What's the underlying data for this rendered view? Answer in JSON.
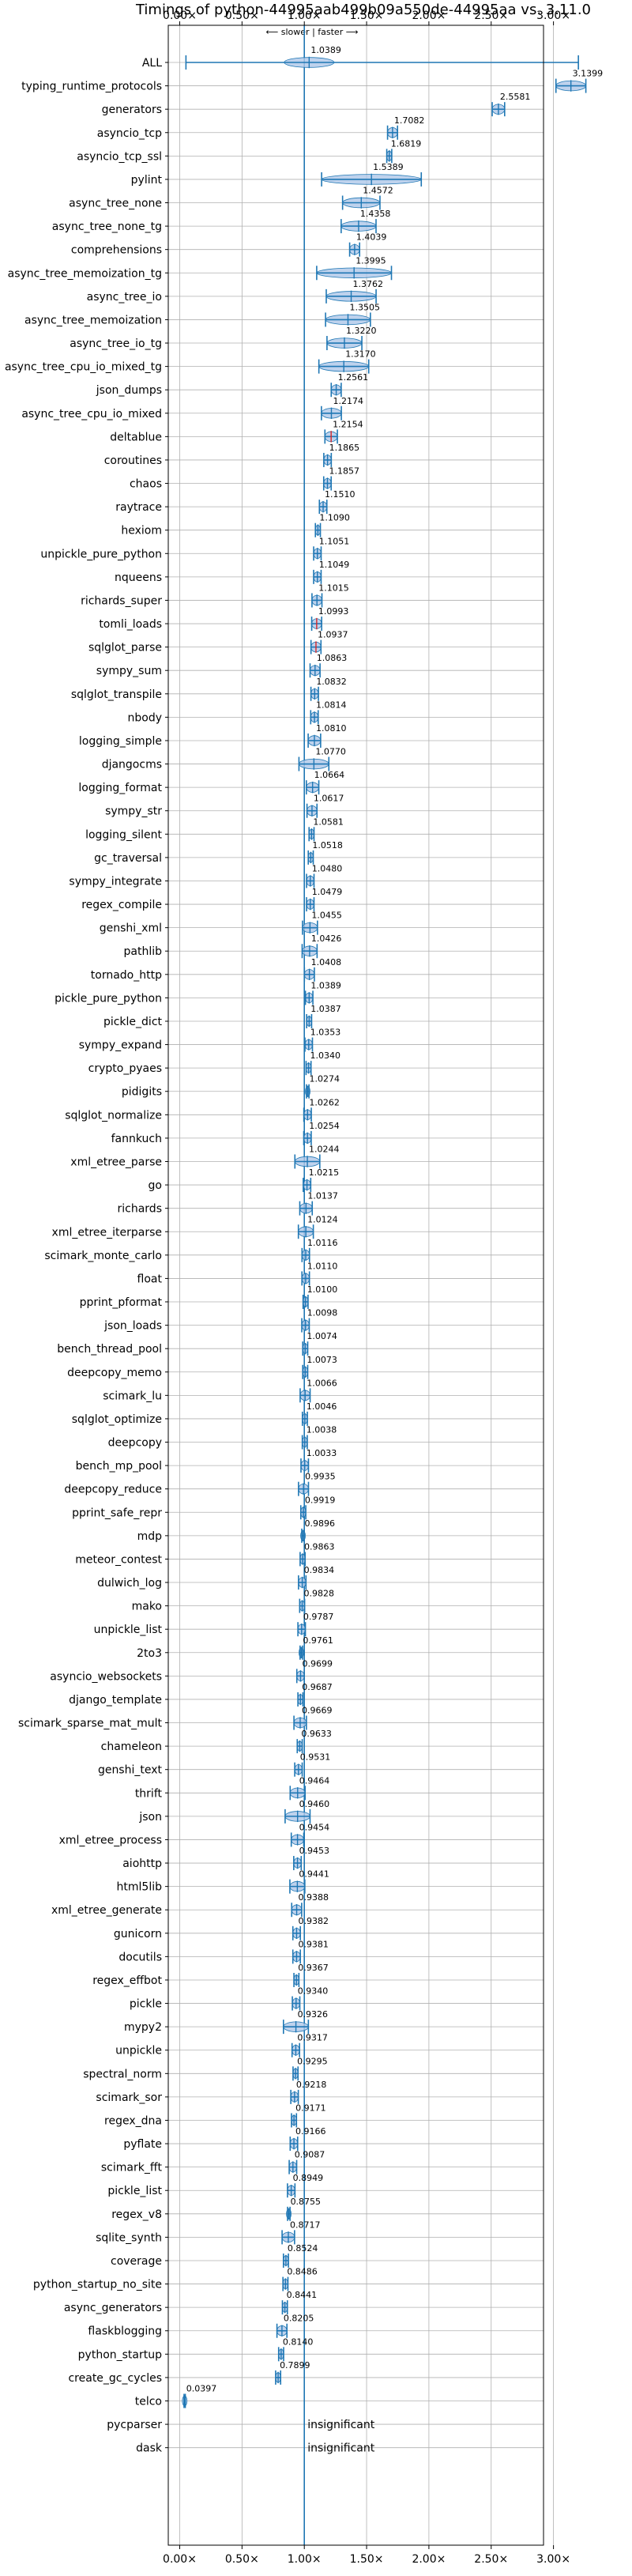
{
  "chart_data": {
    "type": "violin",
    "title": "Timings of python-44995aab499b09a550de-44995aa vs. 3.11.0",
    "annotation": "⟵ slower | faster ⟶",
    "x_ticks": [
      {
        "value": 0.0,
        "label": "0.00×"
      },
      {
        "value": 0.5,
        "label": "0.50×"
      },
      {
        "value": 1.0,
        "label": "1.00×"
      },
      {
        "value": 1.5,
        "label": "1.50×"
      },
      {
        "value": 2.0,
        "label": "2.00×"
      },
      {
        "value": 2.5,
        "label": "2.50×"
      },
      {
        "value": 3.0,
        "label": "3.00×"
      }
    ],
    "xlim": [
      -0.05,
      3.2
    ],
    "reference_line": 1.0,
    "grid": true,
    "colors": {
      "violin": "#1f77b4",
      "violin_fill": "#aec7e8",
      "reference": "#1f77b4",
      "grid": "#b0b0b0",
      "highlight": "#d62728"
    },
    "benchmarks": [
      {
        "name": "ALL",
        "value": 1.0389,
        "label": "1.0389",
        "spread": 0.2,
        "range": [
          0.05,
          3.2
        ]
      },
      {
        "name": "typing_runtime_protocols",
        "value": 3.1399,
        "label": "3.1399",
        "spread": 0.12
      },
      {
        "name": "generators",
        "value": 2.5581,
        "label": "2.5581",
        "spread": 0.05
      },
      {
        "name": "asyncio_tcp",
        "value": 1.7082,
        "label": "1.7082",
        "spread": 0.04
      },
      {
        "name": "asyncio_tcp_ssl",
        "value": 1.6819,
        "label": "1.6819",
        "spread": 0.02
      },
      {
        "name": "pylint",
        "value": 1.5389,
        "label": "1.5389",
        "spread": 0.4
      },
      {
        "name": "async_tree_none",
        "value": 1.4572,
        "label": "1.4572",
        "spread": 0.15
      },
      {
        "name": "async_tree_none_tg",
        "value": 1.4358,
        "label": "1.4358",
        "spread": 0.14
      },
      {
        "name": "comprehensions",
        "value": 1.4039,
        "label": "1.4039",
        "spread": 0.04
      },
      {
        "name": "async_tree_memoization_tg",
        "value": 1.3995,
        "label": "1.3995",
        "spread": 0.3
      },
      {
        "name": "async_tree_io",
        "value": 1.3762,
        "label": "1.3762",
        "spread": 0.2
      },
      {
        "name": "async_tree_memoization",
        "value": 1.3505,
        "label": "1.3505",
        "spread": 0.18
      },
      {
        "name": "async_tree_io_tg",
        "value": 1.322,
        "label": "1.3220",
        "spread": 0.14
      },
      {
        "name": "async_tree_cpu_io_mixed_tg",
        "value": 1.317,
        "label": "1.3170",
        "spread": 0.2
      },
      {
        "name": "json_dumps",
        "value": 1.2561,
        "label": "1.2561",
        "spread": 0.04
      },
      {
        "name": "async_tree_cpu_io_mixed",
        "value": 1.2174,
        "label": "1.2174",
        "spread": 0.08
      },
      {
        "name": "deltablue",
        "value": 1.2154,
        "label": "1.2154",
        "spread": 0.05,
        "highlight": true
      },
      {
        "name": "coroutines",
        "value": 1.1865,
        "label": "1.1865",
        "spread": 0.03
      },
      {
        "name": "chaos",
        "value": 1.1857,
        "label": "1.1857",
        "spread": 0.03
      },
      {
        "name": "raytrace",
        "value": 1.151,
        "label": "1.1510",
        "spread": 0.03
      },
      {
        "name": "hexiom",
        "value": 1.109,
        "label": "1.1090",
        "spread": 0.02
      },
      {
        "name": "unpickle_pure_python",
        "value": 1.1051,
        "label": "1.1051",
        "spread": 0.03
      },
      {
        "name": "nqueens",
        "value": 1.1049,
        "label": "1.1049",
        "spread": 0.03
      },
      {
        "name": "richards_super",
        "value": 1.1015,
        "label": "1.1015",
        "spread": 0.04
      },
      {
        "name": "tomli_loads",
        "value": 1.0993,
        "label": "1.0993",
        "spread": 0.04,
        "highlight": true
      },
      {
        "name": "sqlglot_parse",
        "value": 1.0937,
        "label": "1.0937",
        "spread": 0.04,
        "highlight": true
      },
      {
        "name": "sympy_sum",
        "value": 1.0863,
        "label": "1.0863",
        "spread": 0.04
      },
      {
        "name": "sqlglot_transpile",
        "value": 1.0832,
        "label": "1.0832",
        "spread": 0.03
      },
      {
        "name": "nbody",
        "value": 1.0814,
        "label": "1.0814",
        "spread": 0.03
      },
      {
        "name": "logging_simple",
        "value": 1.081,
        "label": "1.0810",
        "spread": 0.05
      },
      {
        "name": "djangocms",
        "value": 1.077,
        "label": "1.0770",
        "spread": 0.12
      },
      {
        "name": "logging_format",
        "value": 1.0664,
        "label": "1.0664",
        "spread": 0.05
      },
      {
        "name": "sympy_str",
        "value": 1.0617,
        "label": "1.0617",
        "spread": 0.04
      },
      {
        "name": "logging_silent",
        "value": 1.0581,
        "label": "1.0581",
        "spread": 0.02
      },
      {
        "name": "gc_traversal",
        "value": 1.0518,
        "label": "1.0518",
        "spread": 0.02
      },
      {
        "name": "sympy_integrate",
        "value": 1.048,
        "label": "1.0480",
        "spread": 0.03
      },
      {
        "name": "regex_compile",
        "value": 1.0479,
        "label": "1.0479",
        "spread": 0.03
      },
      {
        "name": "genshi_xml",
        "value": 1.0455,
        "label": "1.0455",
        "spread": 0.06
      },
      {
        "name": "pathlib",
        "value": 1.0426,
        "label": "1.0426",
        "spread": 0.06
      },
      {
        "name": "tornado_http",
        "value": 1.0408,
        "label": "1.0408",
        "spread": 0.04
      },
      {
        "name": "pickle_pure_python",
        "value": 1.0389,
        "label": "1.0389",
        "spread": 0.03
      },
      {
        "name": "pickle_dict",
        "value": 1.0387,
        "label": "1.0387",
        "spread": 0.02
      },
      {
        "name": "sympy_expand",
        "value": 1.0353,
        "label": "1.0353",
        "spread": 0.03
      },
      {
        "name": "crypto_pyaes",
        "value": 1.034,
        "label": "1.0340",
        "spread": 0.02
      },
      {
        "name": "pidigits",
        "value": 1.0274,
        "label": "1.0274",
        "spread": 0.01
      },
      {
        "name": "sqlglot_normalize",
        "value": 1.0262,
        "label": "1.0262",
        "spread": 0.03
      },
      {
        "name": "fannkuch",
        "value": 1.0254,
        "label": "1.0254",
        "spread": 0.03
      },
      {
        "name": "xml_etree_parse",
        "value": 1.0244,
        "label": "1.0244",
        "spread": 0.1
      },
      {
        "name": "go",
        "value": 1.0215,
        "label": "1.0215",
        "spread": 0.03
      },
      {
        "name": "richards",
        "value": 1.0137,
        "label": "1.0137",
        "spread": 0.05
      },
      {
        "name": "xml_etree_iterparse",
        "value": 1.0124,
        "label": "1.0124",
        "spread": 0.06
      },
      {
        "name": "scimark_monte_carlo",
        "value": 1.0116,
        "label": "1.0116",
        "spread": 0.03
      },
      {
        "name": "float",
        "value": 1.011,
        "label": "1.0110",
        "spread": 0.03
      },
      {
        "name": "pprint_pformat",
        "value": 1.01,
        "label": "1.0100",
        "spread": 0.02
      },
      {
        "name": "json_loads",
        "value": 1.0098,
        "label": "1.0098",
        "spread": 0.03
      },
      {
        "name": "bench_thread_pool",
        "value": 1.0074,
        "label": "1.0074",
        "spread": 0.02
      },
      {
        "name": "deepcopy_memo",
        "value": 1.0073,
        "label": "1.0073",
        "spread": 0.02
      },
      {
        "name": "scimark_lu",
        "value": 1.0066,
        "label": "1.0066",
        "spread": 0.04
      },
      {
        "name": "sqlglot_optimize",
        "value": 1.0046,
        "label": "1.0046",
        "spread": 0.02
      },
      {
        "name": "deepcopy",
        "value": 1.0038,
        "label": "1.0038",
        "spread": 0.02
      },
      {
        "name": "bench_mp_pool",
        "value": 1.0033,
        "label": "1.0033",
        "spread": 0.03
      },
      {
        "name": "deepcopy_reduce",
        "value": 0.9935,
        "label": "0.9935",
        "spread": 0.04
      },
      {
        "name": "pprint_safe_repr",
        "value": 0.9919,
        "label": "0.9919",
        "spread": 0.02
      },
      {
        "name": "mdp",
        "value": 0.9896,
        "label": "0.9896",
        "spread": 0.01
      },
      {
        "name": "meteor_contest",
        "value": 0.9863,
        "label": "0.9863",
        "spread": 0.02
      },
      {
        "name": "dulwich_log",
        "value": 0.9834,
        "label": "0.9834",
        "spread": 0.03
      },
      {
        "name": "mako",
        "value": 0.9828,
        "label": "0.9828",
        "spread": 0.02
      },
      {
        "name": "unpickle_list",
        "value": 0.9787,
        "label": "0.9787",
        "spread": 0.03
      },
      {
        "name": "2to3",
        "value": 0.9761,
        "label": "0.9761",
        "spread": 0.01
      },
      {
        "name": "asyncio_websockets",
        "value": 0.9699,
        "label": "0.9699",
        "spread": 0.03
      },
      {
        "name": "django_template",
        "value": 0.9687,
        "label": "0.9687",
        "spread": 0.02
      },
      {
        "name": "scimark_sparse_mat_mult",
        "value": 0.9669,
        "label": "0.9669",
        "spread": 0.05
      },
      {
        "name": "chameleon",
        "value": 0.9633,
        "label": "0.9633",
        "spread": 0.02
      },
      {
        "name": "genshi_text",
        "value": 0.9531,
        "label": "0.9531",
        "spread": 0.03
      },
      {
        "name": "thrift",
        "value": 0.9464,
        "label": "0.9464",
        "spread": 0.06
      },
      {
        "name": "json",
        "value": 0.946,
        "label": "0.9460",
        "spread": 0.1
      },
      {
        "name": "xml_etree_process",
        "value": 0.9454,
        "label": "0.9454",
        "spread": 0.05
      },
      {
        "name": "aiohttp",
        "value": 0.9453,
        "label": "0.9453",
        "spread": 0.03
      },
      {
        "name": "html5lib",
        "value": 0.9441,
        "label": "0.9441",
        "spread": 0.06
      },
      {
        "name": "xml_etree_generate",
        "value": 0.9388,
        "label": "0.9388",
        "spread": 0.04
      },
      {
        "name": "gunicorn",
        "value": 0.9382,
        "label": "0.9382",
        "spread": 0.03
      },
      {
        "name": "docutils",
        "value": 0.9381,
        "label": "0.9381",
        "spread": 0.03
      },
      {
        "name": "regex_effbot",
        "value": 0.9367,
        "label": "0.9367",
        "spread": 0.02
      },
      {
        "name": "pickle",
        "value": 0.934,
        "label": "0.9340",
        "spread": 0.03
      },
      {
        "name": "mypy2",
        "value": 0.9326,
        "label": "0.9326",
        "spread": 0.1
      },
      {
        "name": "unpickle",
        "value": 0.9317,
        "label": "0.9317",
        "spread": 0.03
      },
      {
        "name": "spectral_norm",
        "value": 0.9295,
        "label": "0.9295",
        "spread": 0.02
      },
      {
        "name": "scimark_sor",
        "value": 0.9218,
        "label": "0.9218",
        "spread": 0.03
      },
      {
        "name": "regex_dna",
        "value": 0.9171,
        "label": "0.9171",
        "spread": 0.02
      },
      {
        "name": "pyflate",
        "value": 0.9166,
        "label": "0.9166",
        "spread": 0.03
      },
      {
        "name": "scimark_fft",
        "value": 0.9087,
        "label": "0.9087",
        "spread": 0.03
      },
      {
        "name": "pickle_list",
        "value": 0.8949,
        "label": "0.8949",
        "spread": 0.03
      },
      {
        "name": "regex_v8",
        "value": 0.8755,
        "label": "0.8755",
        "spread": 0.01
      },
      {
        "name": "sqlite_synth",
        "value": 0.8717,
        "label": "0.8717",
        "spread": 0.05
      },
      {
        "name": "coverage",
        "value": 0.8524,
        "label": "0.8524",
        "spread": 0.02
      },
      {
        "name": "python_startup_no_site",
        "value": 0.8486,
        "label": "0.8486",
        "spread": 0.02
      },
      {
        "name": "async_generators",
        "value": 0.8441,
        "label": "0.8441",
        "spread": 0.02
      },
      {
        "name": "flaskblogging",
        "value": 0.8205,
        "label": "0.8205",
        "spread": 0.04
      },
      {
        "name": "python_startup",
        "value": 0.814,
        "label": "0.8140",
        "spread": 0.02
      },
      {
        "name": "create_gc_cycles",
        "value": 0.7899,
        "label": "0.7899",
        "spread": 0.02
      },
      {
        "name": "telco",
        "value": 0.0397,
        "label": "0.0397",
        "spread": 0.005
      },
      {
        "name": "pycparser",
        "value": null,
        "label": "insignificant"
      },
      {
        "name": "dask",
        "value": null,
        "label": "insignificant"
      }
    ]
  }
}
